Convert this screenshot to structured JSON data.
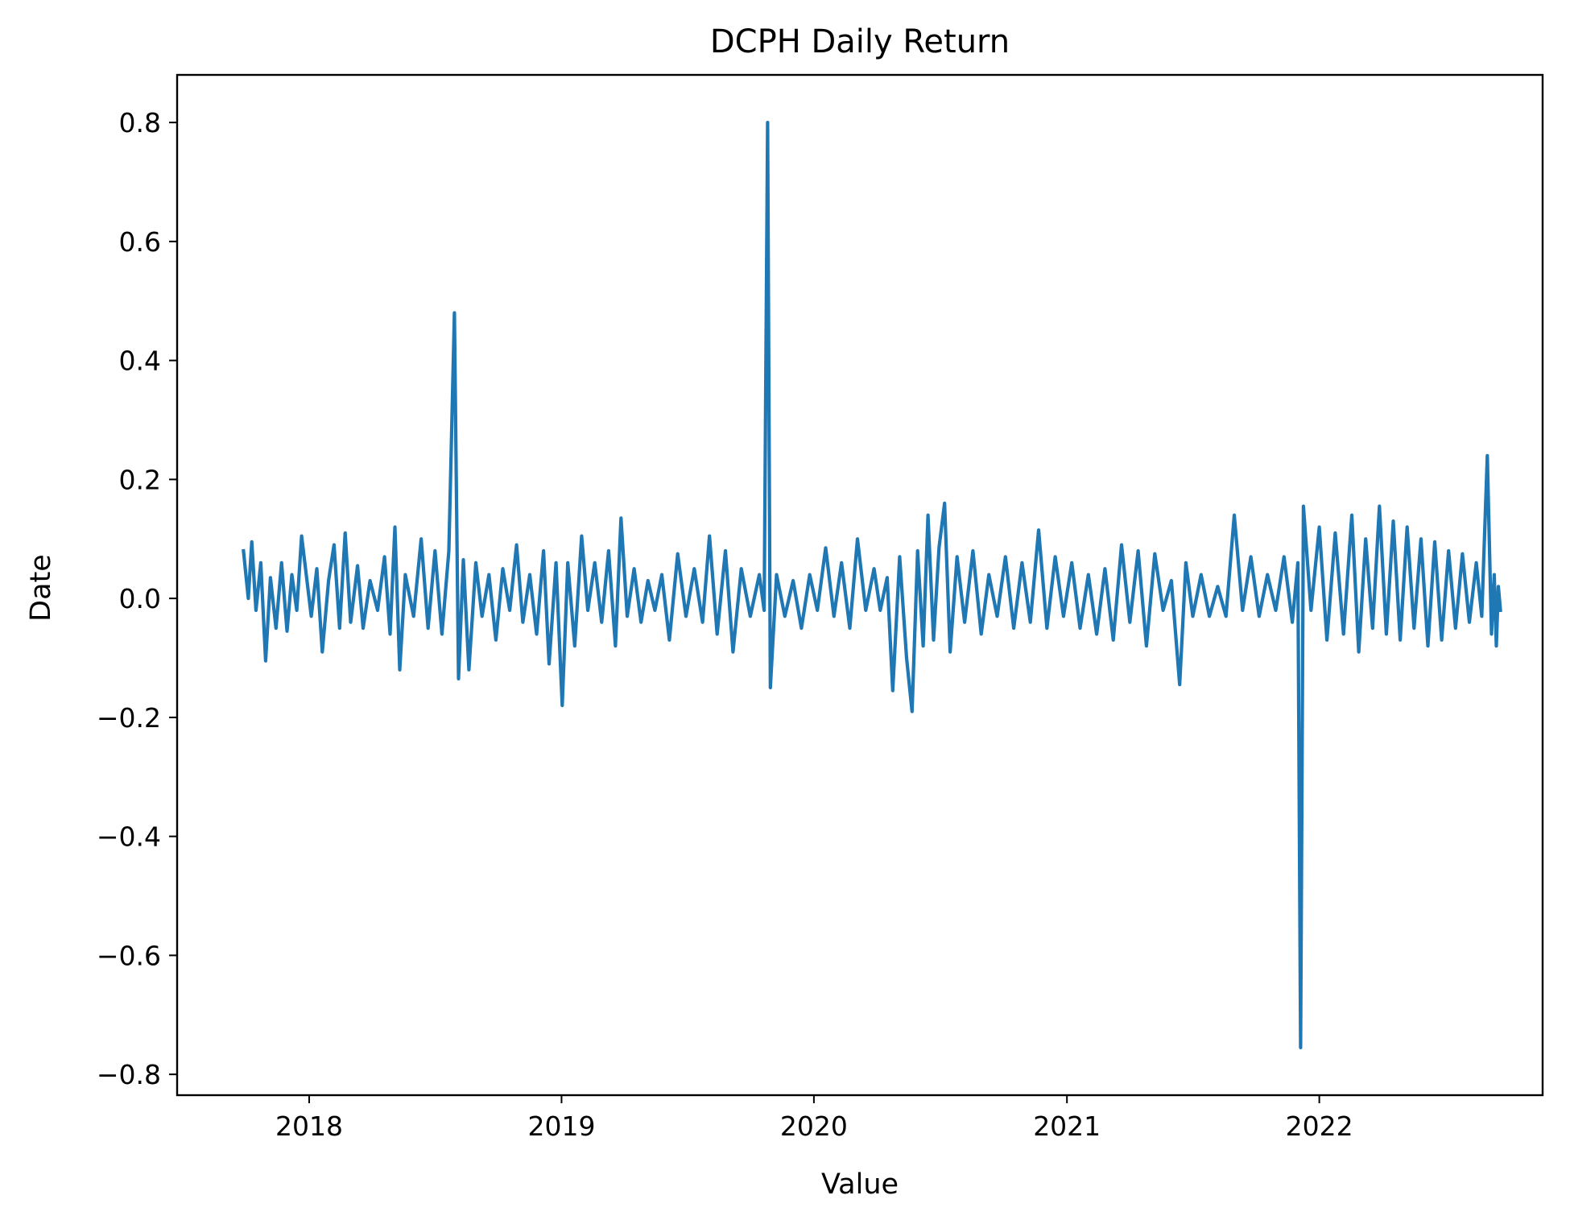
{
  "chart_data": {
    "type": "line",
    "title": "DCPH Daily Return",
    "xlabel": "Value",
    "ylabel": "Date",
    "xlim": [
      "2017-06-24",
      "2022-11-20"
    ],
    "ylim": [
      -0.835,
      0.88
    ],
    "x_ticks": [
      "2018",
      "2019",
      "2020",
      "2021",
      "2022"
    ],
    "y_ticks": [
      "0.8",
      "0.6",
      "0.4",
      "0.2",
      "0.0",
      "−0.2",
      "−0.4",
      "−0.6",
      "−0.8"
    ],
    "grid": false,
    "series": [
      {
        "color": "#1f77b4",
        "points": [
          [
            "2017-09-28",
            0.08
          ],
          [
            "2017-10-05",
            0.0
          ],
          [
            "2017-10-10",
            0.095
          ],
          [
            "2017-10-16",
            -0.02
          ],
          [
            "2017-10-23",
            0.06
          ],
          [
            "2017-10-30",
            -0.105
          ],
          [
            "2017-11-06",
            0.035
          ],
          [
            "2017-11-14",
            -0.05
          ],
          [
            "2017-11-22",
            0.06
          ],
          [
            "2017-11-30",
            -0.055
          ],
          [
            "2017-12-07",
            0.04
          ],
          [
            "2017-12-14",
            -0.02
          ],
          [
            "2017-12-21",
            0.105
          ],
          [
            "2018-01-04",
            -0.03
          ],
          [
            "2018-01-12",
            0.05
          ],
          [
            "2018-01-20",
            -0.09
          ],
          [
            "2018-01-29",
            0.03
          ],
          [
            "2018-02-06",
            0.09
          ],
          [
            "2018-02-14",
            -0.05
          ],
          [
            "2018-02-22",
            0.11
          ],
          [
            "2018-03-02",
            -0.04
          ],
          [
            "2018-03-12",
            0.055
          ],
          [
            "2018-03-20",
            -0.05
          ],
          [
            "2018-03-30",
            0.03
          ],
          [
            "2018-04-10",
            -0.02
          ],
          [
            "2018-04-20",
            0.07
          ],
          [
            "2018-04-28",
            -0.06
          ],
          [
            "2018-05-05",
            0.12
          ],
          [
            "2018-05-12",
            -0.12
          ],
          [
            "2018-05-20",
            0.04
          ],
          [
            "2018-06-01",
            -0.03
          ],
          [
            "2018-06-12",
            0.1
          ],
          [
            "2018-06-22",
            -0.05
          ],
          [
            "2018-07-02",
            0.08
          ],
          [
            "2018-07-12",
            -0.06
          ],
          [
            "2018-07-22",
            0.08
          ],
          [
            "2018-07-30",
            0.48
          ],
          [
            "2018-08-05",
            -0.135
          ],
          [
            "2018-08-12",
            0.065
          ],
          [
            "2018-08-20",
            -0.12
          ],
          [
            "2018-08-30",
            0.06
          ],
          [
            "2018-09-08",
            -0.03
          ],
          [
            "2018-09-18",
            0.04
          ],
          [
            "2018-09-28",
            -0.07
          ],
          [
            "2018-10-08",
            0.05
          ],
          [
            "2018-10-18",
            -0.02
          ],
          [
            "2018-10-28",
            0.09
          ],
          [
            "2018-11-06",
            -0.04
          ],
          [
            "2018-11-16",
            0.04
          ],
          [
            "2018-11-26",
            -0.06
          ],
          [
            "2018-12-06",
            0.08
          ],
          [
            "2018-12-14",
            -0.11
          ],
          [
            "2018-12-24",
            0.06
          ],
          [
            "2019-01-02",
            -0.18
          ],
          [
            "2019-01-10",
            0.06
          ],
          [
            "2019-01-20",
            -0.08
          ],
          [
            "2019-01-30",
            0.105
          ],
          [
            "2019-02-08",
            -0.02
          ],
          [
            "2019-02-18",
            0.06
          ],
          [
            "2019-02-28",
            -0.04
          ],
          [
            "2019-03-10",
            0.08
          ],
          [
            "2019-03-20",
            -0.08
          ],
          [
            "2019-03-28",
            0.135
          ],
          [
            "2019-04-06",
            -0.03
          ],
          [
            "2019-04-16",
            0.05
          ],
          [
            "2019-04-26",
            -0.04
          ],
          [
            "2019-05-06",
            0.03
          ],
          [
            "2019-05-16",
            -0.02
          ],
          [
            "2019-05-26",
            0.04
          ],
          [
            "2019-06-06",
            -0.07
          ],
          [
            "2019-06-18",
            0.075
          ],
          [
            "2019-06-30",
            -0.03
          ],
          [
            "2019-07-12",
            0.05
          ],
          [
            "2019-07-24",
            -0.04
          ],
          [
            "2019-08-03",
            0.105
          ],
          [
            "2019-08-14",
            -0.06
          ],
          [
            "2019-08-26",
            0.08
          ],
          [
            "2019-09-06",
            -0.09
          ],
          [
            "2019-09-18",
            0.05
          ],
          [
            "2019-10-01",
            -0.03
          ],
          [
            "2019-10-14",
            0.04
          ],
          [
            "2019-10-21",
            -0.02
          ],
          [
            "2019-10-26",
            0.8
          ],
          [
            "2019-10-30",
            -0.15
          ],
          [
            "2019-11-08",
            0.04
          ],
          [
            "2019-11-20",
            -0.03
          ],
          [
            "2019-12-02",
            0.03
          ],
          [
            "2019-12-14",
            -0.05
          ],
          [
            "2019-12-26",
            0.04
          ],
          [
            "2020-01-06",
            -0.02
          ],
          [
            "2020-01-18",
            0.085
          ],
          [
            "2020-01-30",
            -0.03
          ],
          [
            "2020-02-10",
            0.06
          ],
          [
            "2020-02-22",
            -0.05
          ],
          [
            "2020-03-04",
            0.1
          ],
          [
            "2020-03-16",
            -0.02
          ],
          [
            "2020-03-28",
            0.05
          ],
          [
            "2020-04-06",
            -0.02
          ],
          [
            "2020-04-16",
            0.035
          ],
          [
            "2020-04-24",
            -0.155
          ],
          [
            "2020-05-04",
            0.07
          ],
          [
            "2020-05-14",
            -0.1
          ],
          [
            "2020-05-22",
            -0.19
          ],
          [
            "2020-05-30",
            0.08
          ],
          [
            "2020-06-07",
            -0.08
          ],
          [
            "2020-06-14",
            0.14
          ],
          [
            "2020-06-22",
            -0.07
          ],
          [
            "2020-06-30",
            0.085
          ],
          [
            "2020-07-08",
            0.16
          ],
          [
            "2020-07-16",
            -0.09
          ],
          [
            "2020-07-26",
            0.07
          ],
          [
            "2020-08-06",
            -0.04
          ],
          [
            "2020-08-18",
            0.08
          ],
          [
            "2020-08-30",
            -0.06
          ],
          [
            "2020-09-10",
            0.04
          ],
          [
            "2020-09-22",
            -0.03
          ],
          [
            "2020-10-04",
            0.07
          ],
          [
            "2020-10-16",
            -0.05
          ],
          [
            "2020-10-28",
            0.06
          ],
          [
            "2020-11-09",
            -0.04
          ],
          [
            "2020-11-21",
            0.115
          ],
          [
            "2020-12-03",
            -0.05
          ],
          [
            "2020-12-15",
            0.07
          ],
          [
            "2020-12-27",
            -0.03
          ],
          [
            "2021-01-08",
            0.06
          ],
          [
            "2021-01-20",
            -0.05
          ],
          [
            "2021-02-01",
            0.04
          ],
          [
            "2021-02-13",
            -0.06
          ],
          [
            "2021-02-25",
            0.05
          ],
          [
            "2021-03-09",
            -0.07
          ],
          [
            "2021-03-21",
            0.09
          ],
          [
            "2021-04-02",
            -0.04
          ],
          [
            "2021-04-14",
            0.08
          ],
          [
            "2021-04-26",
            -0.08
          ],
          [
            "2021-05-08",
            0.075
          ],
          [
            "2021-05-20",
            -0.02
          ],
          [
            "2021-06-01",
            0.03
          ],
          [
            "2021-06-13",
            -0.145
          ],
          [
            "2021-06-22",
            0.06
          ],
          [
            "2021-07-02",
            -0.03
          ],
          [
            "2021-07-14",
            0.04
          ],
          [
            "2021-07-26",
            -0.03
          ],
          [
            "2021-08-07",
            0.02
          ],
          [
            "2021-08-19",
            -0.03
          ],
          [
            "2021-08-31",
            0.14
          ],
          [
            "2021-09-12",
            -0.02
          ],
          [
            "2021-09-24",
            0.07
          ],
          [
            "2021-10-06",
            -0.03
          ],
          [
            "2021-10-18",
            0.04
          ],
          [
            "2021-10-30",
            -0.02
          ],
          [
            "2021-11-11",
            0.07
          ],
          [
            "2021-11-23",
            -0.04
          ],
          [
            "2021-12-01",
            0.06
          ],
          [
            "2021-12-05",
            -0.755
          ],
          [
            "2021-12-09",
            0.155
          ],
          [
            "2021-12-20",
            -0.02
          ],
          [
            "2022-01-01",
            0.12
          ],
          [
            "2022-01-12",
            -0.07
          ],
          [
            "2022-01-24",
            0.11
          ],
          [
            "2022-02-05",
            -0.06
          ],
          [
            "2022-02-17",
            0.14
          ],
          [
            "2022-02-27",
            -0.09
          ],
          [
            "2022-03-09",
            0.1
          ],
          [
            "2022-03-19",
            -0.05
          ],
          [
            "2022-03-29",
            0.155
          ],
          [
            "2022-04-08",
            -0.06
          ],
          [
            "2022-04-18",
            0.13
          ],
          [
            "2022-04-28",
            -0.07
          ],
          [
            "2022-05-08",
            0.12
          ],
          [
            "2022-05-18",
            -0.05
          ],
          [
            "2022-05-28",
            0.1
          ],
          [
            "2022-06-07",
            -0.08
          ],
          [
            "2022-06-17",
            0.095
          ],
          [
            "2022-06-27",
            -0.07
          ],
          [
            "2022-07-07",
            0.08
          ],
          [
            "2022-07-17",
            -0.05
          ],
          [
            "2022-07-27",
            0.075
          ],
          [
            "2022-08-06",
            -0.04
          ],
          [
            "2022-08-16",
            0.06
          ],
          [
            "2022-08-24",
            -0.03
          ],
          [
            "2022-09-01",
            0.24
          ],
          [
            "2022-09-07",
            -0.06
          ],
          [
            "2022-09-11",
            0.04
          ],
          [
            "2022-09-14",
            -0.08
          ],
          [
            "2022-09-17",
            0.02
          ],
          [
            "2022-09-20",
            -0.02
          ]
        ]
      }
    ]
  }
}
